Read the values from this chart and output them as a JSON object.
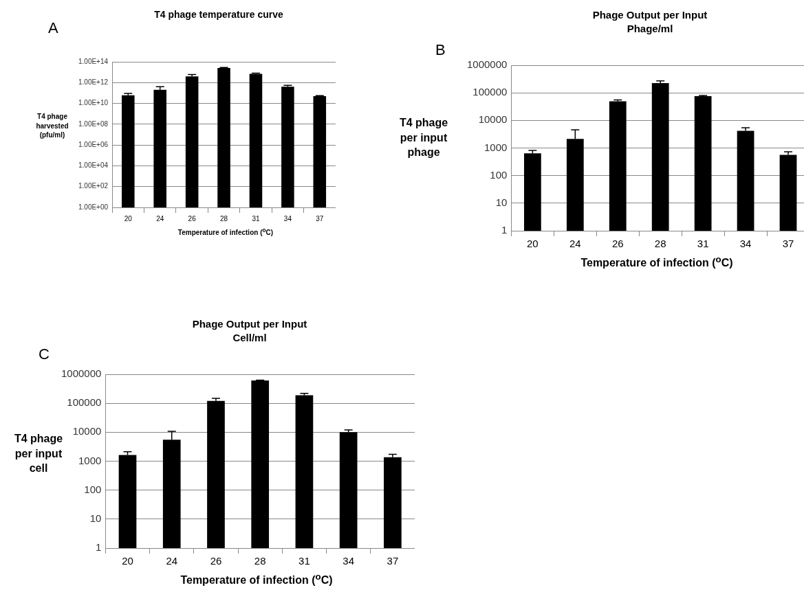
{
  "chart_data": [
    {
      "type": "bar",
      "title": "T4 phage temperature curve",
      "xlabel": "Temperature of infection ($^{o}$C)",
      "ylabel": "T4 phage harvested (pfu/ml)",
      "annotations": [
        "A"
      ],
      "categories": [
        "20",
        "24",
        "26",
        "28",
        "31",
        "34",
        "37"
      ],
      "values": [
        60000000000.0,
        200000000000.0,
        4000000000000.0,
        25000000000000.0,
        7000000000000.0,
        400000000000.0,
        50000000000.0
      ],
      "errors": [
        30000000000.0,
        200000000000.0,
        2000000000000.0,
        3000000000000.0,
        1000000000000.0,
        150000000000.0,
        5000000000.0
      ],
      "color": "#000000",
      "log": true,
      "grid": "y",
      "legend": false,
      "ylim": [
        1,
        100000000000000.0
      ],
      "yticks": [
        {
          "value": 1,
          "label": "1.00E+00"
        },
        {
          "value": 100,
          "label": "1.00E+02"
        },
        {
          "value": 10000.0,
          "label": "1.00E+04"
        },
        {
          "value": 1000000.0,
          "label": "1.00E+06"
        },
        {
          "value": 100000000.0,
          "label": "1.00E+08"
        },
        {
          "value": 10000000000.0,
          "label": "1.00E+10"
        },
        {
          "value": 1000000000000.0,
          "label": "1.00E+12"
        },
        {
          "value": 100000000000000.0,
          "label": "1.00E+14"
        }
      ]
    },
    {
      "type": "bar",
      "title": "Phage Output per Input\nPhage/ml",
      "xlabel": "Temperature of infection ($^{o}$C)",
      "ylabel": "T4 phage per input phage",
      "annotations": [
        "B"
      ],
      "categories": [
        "20",
        "24",
        "26",
        "28",
        "31",
        "34",
        "37"
      ],
      "values": [
        640,
        2150,
        49000,
        226000,
        76000,
        4200,
        565
      ],
      "errors": [
        180,
        2450,
        6000,
        44000,
        4000,
        1200,
        160
      ],
      "color": "#000000",
      "log": true,
      "grid": "y",
      "legend": false,
      "ylim": [
        1,
        1000000
      ],
      "yticks": [
        1,
        10,
        100,
        1000,
        10000,
        100000,
        1000000
      ]
    },
    {
      "type": "bar",
      "title": "Phage Output per Input\nCell/ml",
      "xlabel": "Temperature of infection ($^{o}$C)",
      "ylabel": "T4 phage per input cell",
      "annotations": [
        "C"
      ],
      "categories": [
        "20",
        "24",
        "26",
        "28",
        "31",
        "34",
        "37"
      ],
      "values": [
        1630,
        5500,
        120000,
        610000,
        190000,
        10000,
        1370
      ],
      "errors": [
        500,
        5200,
        28000,
        20000,
        30000,
        2000,
        350
      ],
      "color": "#000000",
      "log": true,
      "grid": "y",
      "legend": false,
      "ylim": [
        1,
        1000000
      ],
      "yticks": [
        1,
        10,
        100,
        1000,
        10000,
        100000,
        1000000
      ]
    }
  ]
}
